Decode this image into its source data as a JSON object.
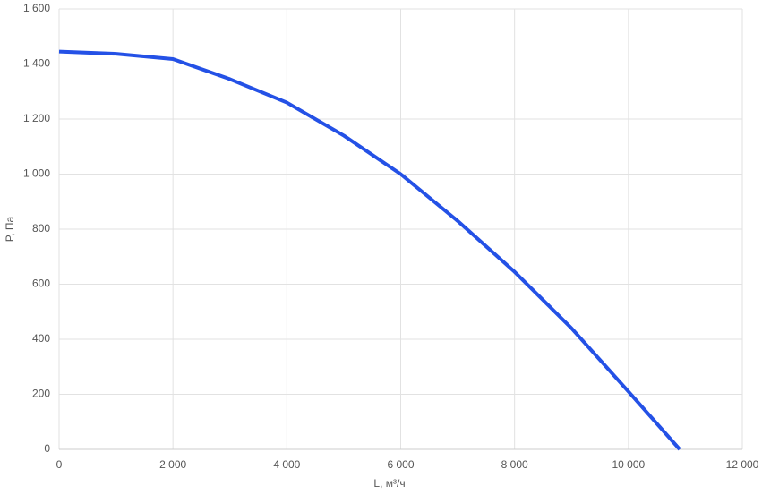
{
  "chart_data": {
    "type": "line",
    "x_label": "L, м³/ч",
    "y_label": "P, Па",
    "x": [
      0,
      1000,
      2000,
      3000,
      4000,
      5000,
      6000,
      7000,
      8000,
      9000,
      10000,
      10900
    ],
    "series": [
      {
        "color": "#2451e6",
        "values": [
          1445,
          1437,
          1418,
          1345,
          1260,
          1140,
          1000,
          830,
          645,
          440,
          210,
          0
        ]
      }
    ],
    "xlim": [
      0,
      12000
    ],
    "ylim": [
      0,
      1600
    ],
    "xticks": [
      0,
      {
        "value": 2000,
        "label": "2 000"
      },
      {
        "value": 4000,
        "label": "4 000"
      },
      {
        "value": 6000,
        "label": "6 000"
      },
      {
        "value": 8000,
        "label": "8 000"
      },
      {
        "value": 10000,
        "label": "10 000"
      },
      {
        "value": 12000,
        "label": "12 000"
      }
    ],
    "yticks": [
      0,
      200,
      400,
      600,
      800,
      {
        "value": 1000,
        "label": "1 000"
      },
      {
        "value": 1200,
        "label": "1 200"
      },
      {
        "value": 1400,
        "label": "1 400"
      },
      {
        "value": 1600,
        "label": "1 600"
      }
    ],
    "grid": true
  }
}
